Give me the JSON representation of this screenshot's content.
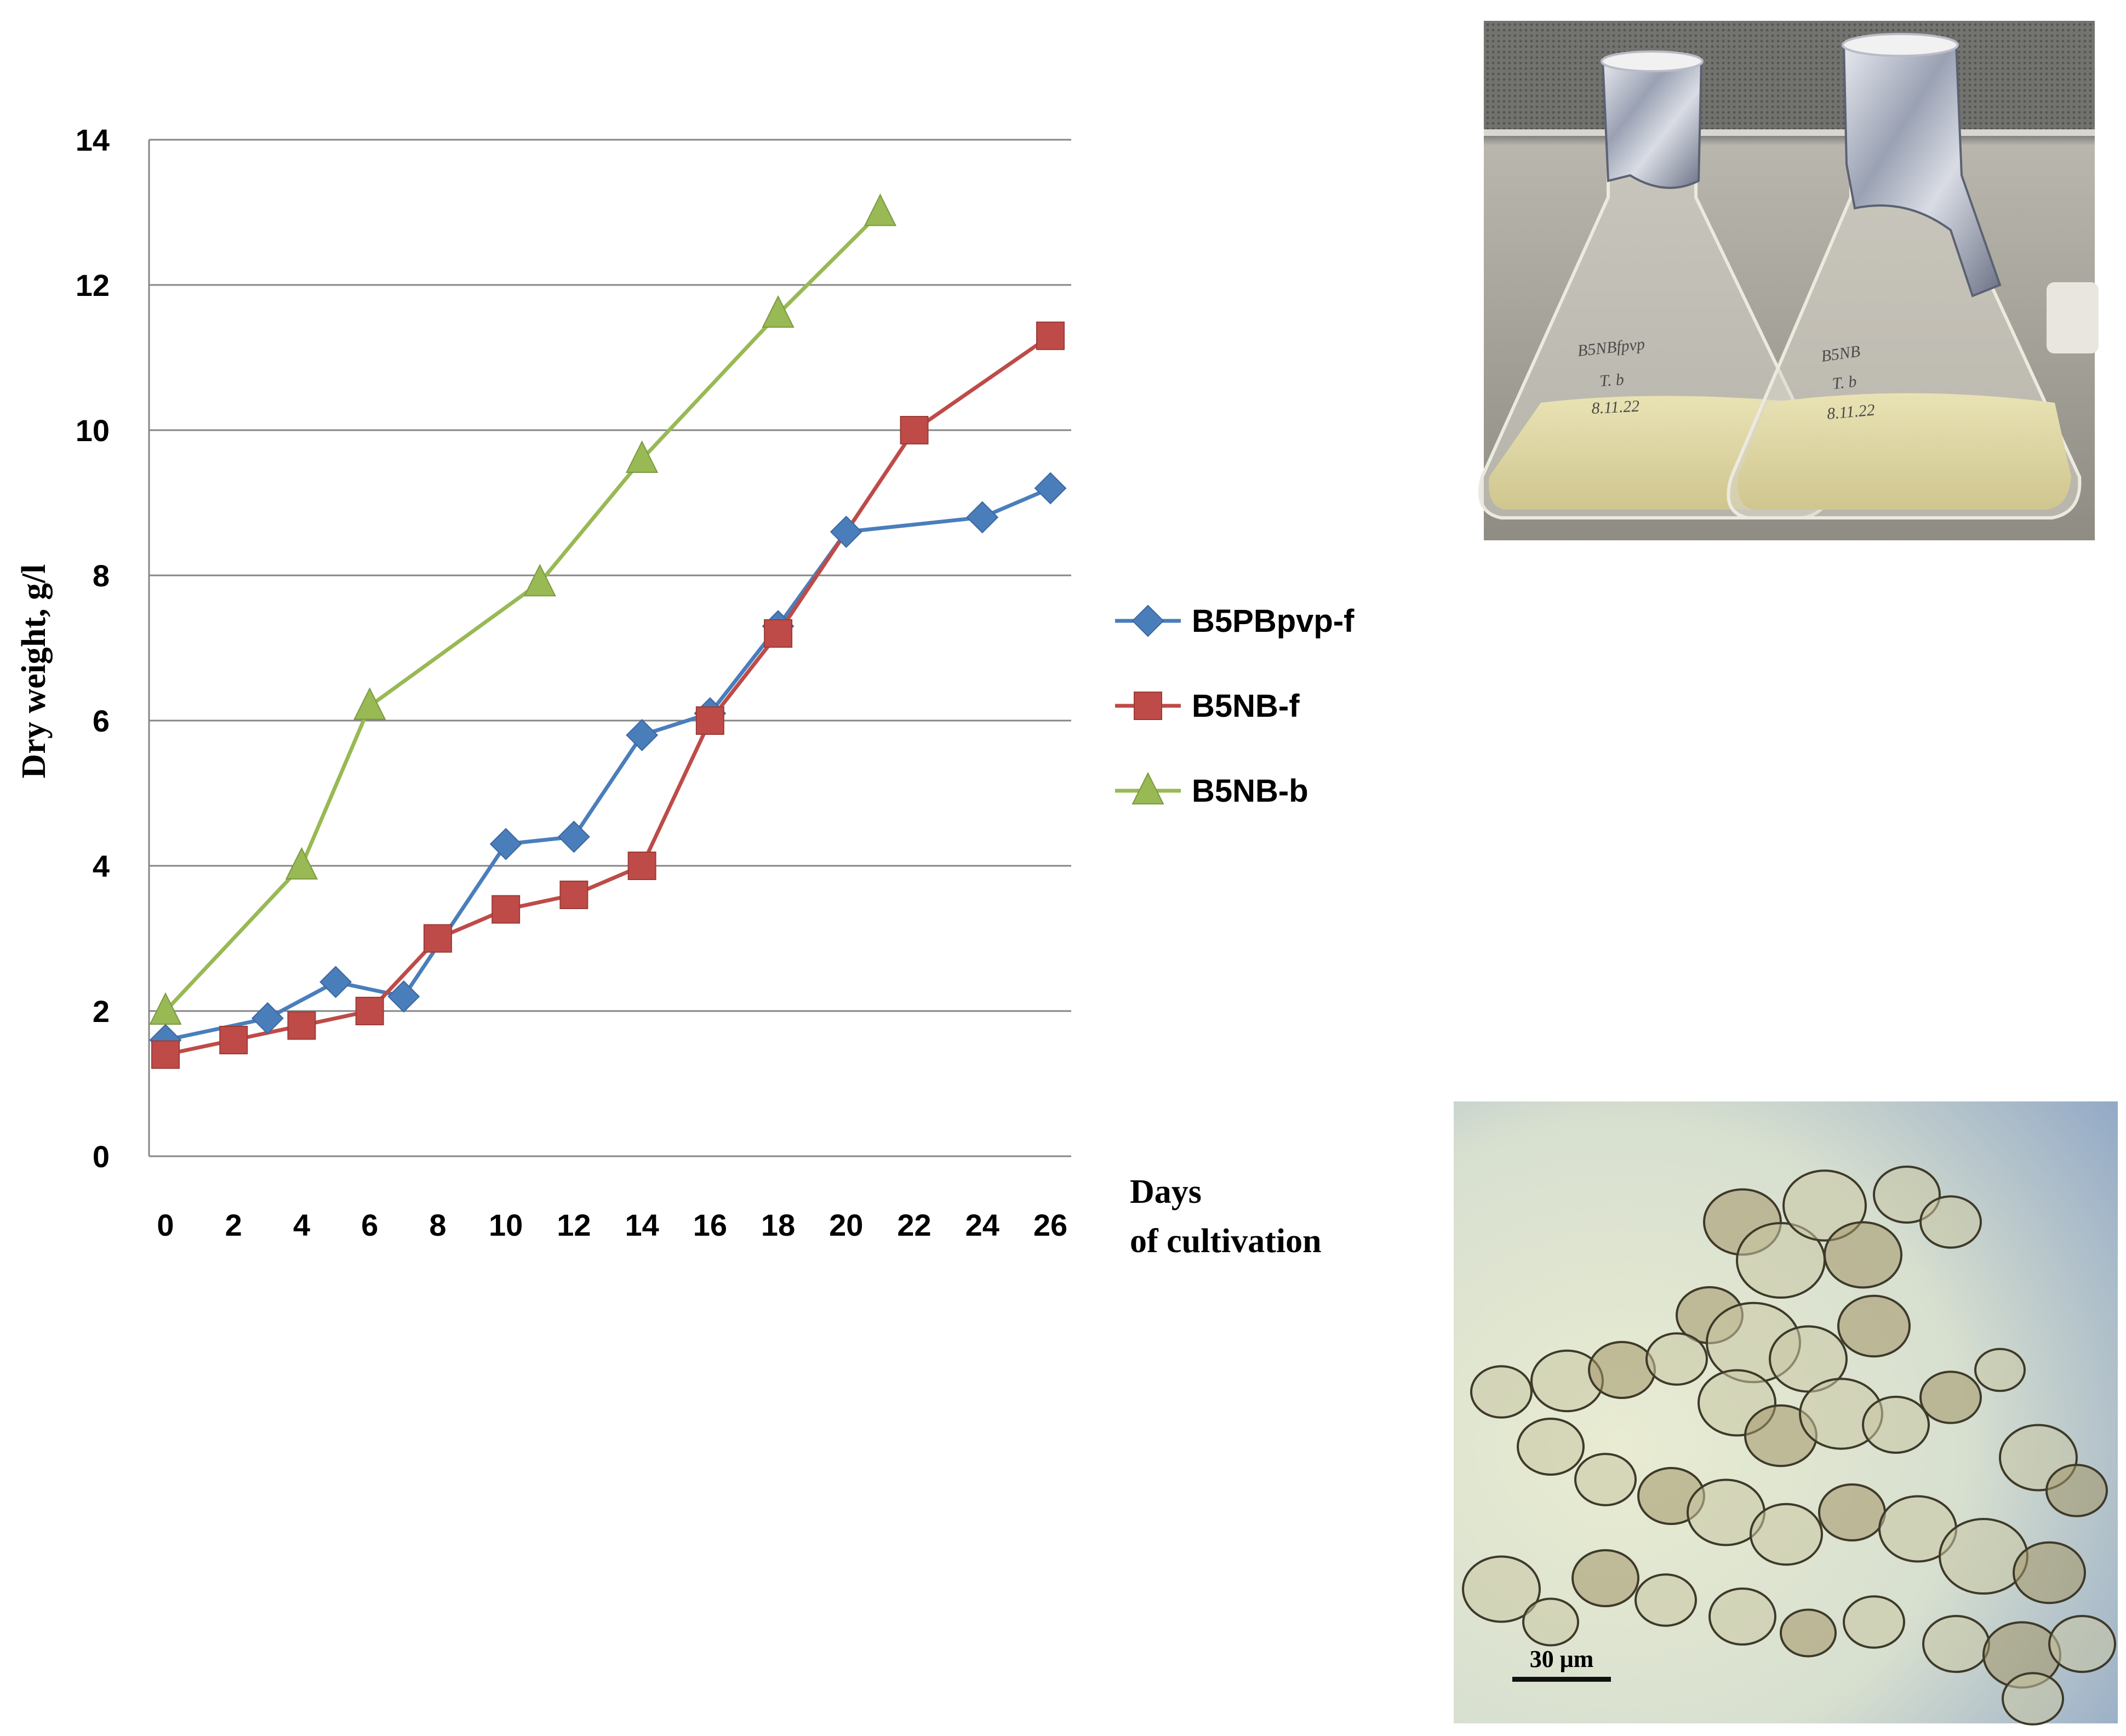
{
  "chart_data": {
    "type": "line",
    "title": "",
    "xlabel": [
      "Days",
      "of cultivation"
    ],
    "ylabel": "Dry weight, g/l",
    "xlim": [
      0,
      26
    ],
    "ylim": [
      0,
      14
    ],
    "x_ticks": [
      "0",
      "2",
      "4",
      "6",
      "8",
      "10",
      "12",
      "14",
      "16",
      "18",
      "20",
      "22",
      "24",
      "26"
    ],
    "y_ticks": [
      "0",
      "2",
      "4",
      "6",
      "8",
      "10",
      "12",
      "14"
    ],
    "grid": true,
    "legend_position": "right",
    "series": [
      {
        "name": "B5PBpvp-f",
        "color": "#4a7ebb",
        "marker": "diamond",
        "x": [
          0,
          3,
          5,
          7,
          10,
          12,
          14,
          16,
          18,
          20,
          24,
          26
        ],
        "y": [
          1.6,
          1.9,
          2.4,
          2.2,
          4.3,
          4.4,
          5.8,
          6.1,
          7.3,
          8.6,
          8.8,
          9.2
        ]
      },
      {
        "name": "B5NB-f",
        "color": "#be4b48",
        "marker": "square",
        "x": [
          0,
          2,
          4,
          6,
          8,
          10,
          12,
          14,
          16,
          18,
          22,
          26
        ],
        "y": [
          1.4,
          1.6,
          1.8,
          2.0,
          3.0,
          3.4,
          3.6,
          4.0,
          6.0,
          7.2,
          10.0,
          11.3
        ]
      },
      {
        "name": "B5NB-b",
        "color": "#98b954",
        "marker": "triangle",
        "x": [
          0,
          4,
          6,
          11,
          14,
          18,
          21
        ],
        "y": [
          2.0,
          4.0,
          6.2,
          7.9,
          9.6,
          11.6,
          13.0
        ]
      }
    ]
  },
  "photos": {
    "flask_labels": [
      "B5NBfpvp T.b 8.11.22",
      "B5NB T.b 8.11.22"
    ],
    "micro_scale_label": "30 μm"
  }
}
